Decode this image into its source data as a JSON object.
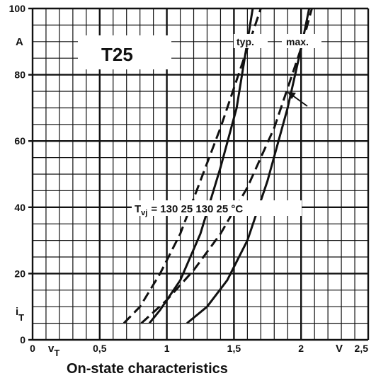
{
  "chart_data": {
    "type": "line",
    "title": "T25",
    "xlabel": "vT",
    "xunit": "V",
    "ylabel": "iT",
    "yunit": "A",
    "xlim": [
      0,
      2.5
    ],
    "ylim": [
      0,
      100
    ],
    "xticks": [
      0,
      0.5,
      1,
      1.5,
      2,
      2.5
    ],
    "xtick_labels": [
      "0",
      "0,5",
      "1",
      "1,5",
      "2",
      "2,5"
    ],
    "yticks": [
      0,
      20,
      40,
      60,
      80,
      100
    ],
    "ytick_labels": [
      "0",
      "20",
      "40",
      "60",
      "80",
      "100"
    ],
    "grid": true,
    "series": [
      {
        "name": "typ. 130",
        "dash": true,
        "x": [
          0.68,
          0.8,
          0.95,
          1.1,
          1.25,
          1.4,
          1.55,
          1.7
        ],
        "y": [
          5,
          10,
          20,
          32,
          48,
          64,
          82,
          100
        ]
      },
      {
        "name": "typ. 25",
        "dash": false,
        "x": [
          0.87,
          0.95,
          1.1,
          1.25,
          1.4,
          1.52,
          1.64
        ],
        "y": [
          5,
          9,
          18,
          32,
          52,
          70,
          100
        ]
      },
      {
        "name": "max. 130",
        "dash": true,
        "x": [
          0.81,
          1.0,
          1.2,
          1.4,
          1.6,
          1.8,
          2.0,
          2.08
        ],
        "y": [
          5,
          12,
          21,
          32,
          46,
          64,
          88,
          100
        ]
      },
      {
        "name": "max. 25",
        "dash": false,
        "x": [
          1.15,
          1.3,
          1.45,
          1.6,
          1.75,
          1.9,
          2.0,
          2.06
        ],
        "y": [
          5,
          10,
          18,
          30,
          48,
          70,
          88,
          100
        ]
      }
    ],
    "annotations": {
      "tvj_label": "T",
      "tvj_sub": "vj",
      "tvj_values": "= 130  25  130     25 °C",
      "typ": "typ.",
      "max": "max.",
      "y_axis_unit": "A",
      "x_axis_unit": "V",
      "y_symbol": "i",
      "y_symbol_sub": "T",
      "x_symbol": "v",
      "x_symbol_sub": "T"
    },
    "caption": "On-state characteristics"
  }
}
